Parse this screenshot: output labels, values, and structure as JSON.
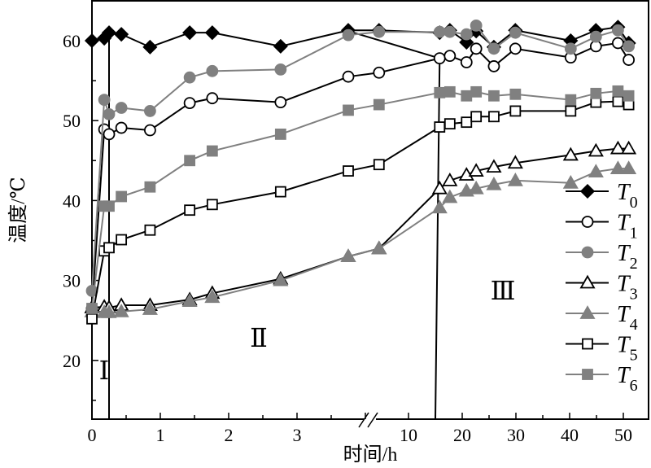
{
  "chart_data": {
    "type": "line",
    "title": "",
    "xlabel": "时间/h",
    "ylabel": "温度/℃",
    "ylim": [
      12.6,
      65
    ],
    "x_axis_break": {
      "left_range": [
        0,
        4.25
      ],
      "right_range": [
        10,
        52
      ]
    },
    "xticks": [
      "0",
      "1",
      "2",
      "3",
      "10",
      "20",
      "30",
      "40",
      "50"
    ],
    "xtick_values": [
      0,
      1,
      2,
      3,
      10,
      20,
      30,
      40,
      50
    ],
    "yticks": [
      "20",
      "30",
      "40",
      "50",
      "60"
    ],
    "ytick_values": [
      20,
      30,
      40,
      50,
      60
    ],
    "legend_position": "right",
    "region_labels": [
      "Ⅰ",
      "Ⅱ",
      "Ⅲ"
    ],
    "x": [
      0,
      0.18,
      0.25,
      0.43,
      0.85,
      1.43,
      1.76,
      2.76,
      3.75,
      4.2,
      15.8,
      17.7,
      20.8,
      22.6,
      25.9,
      29.9,
      40.2,
      44.9,
      49,
      51
    ],
    "series": [
      {
        "name": "T",
        "sub": "0",
        "marker": "diamond",
        "fill": "#000000",
        "line": "#000000",
        "values": [
          60,
          60.3,
          61,
          60.8,
          59.2,
          61,
          61,
          59.3,
          61.3,
          61.3,
          61,
          61.3,
          59.8,
          61.2,
          59.2,
          61.3,
          60,
          61.3,
          61.7,
          59.7
        ]
      },
      {
        "name": "T",
        "sub": "1",
        "marker": "circle",
        "fill": "#ffffff",
        "line": "#000000",
        "values": [
          26.5,
          48.9,
          48.3,
          49.1,
          48.8,
          52.2,
          52.8,
          52.3,
          55.5,
          56,
          57.8,
          58.1,
          57.3,
          59,
          56.8,
          59,
          57.9,
          59.3,
          59.7,
          57.6
        ]
      },
      {
        "name": "T",
        "sub": "2",
        "marker": "circle",
        "fill": "#808080",
        "line": "#808080",
        "values": [
          28.7,
          52.6,
          50.8,
          51.6,
          51.2,
          55.4,
          56.2,
          56.4,
          60.7,
          61.1,
          61.1,
          61.1,
          60.8,
          61.9,
          59,
          61,
          59,
          60.5,
          61.3,
          59.3
        ]
      },
      {
        "name": "T",
        "sub": "3",
        "marker": "triangle",
        "fill": "#ffffff",
        "line": "#000000",
        "values": [
          26.6,
          26.7,
          26.6,
          26.9,
          26.9,
          27.6,
          28.4,
          30.2,
          33,
          34,
          41.5,
          42.5,
          43.2,
          43.7,
          44.2,
          44.7,
          45.7,
          46.2,
          46.5,
          46.5
        ]
      },
      {
        "name": "T",
        "sub": "4",
        "marker": "triangle",
        "fill": "#808080",
        "line": "#808080",
        "values": [
          26.1,
          26,
          26,
          26.1,
          26.4,
          27.4,
          27.9,
          30,
          33,
          34,
          39.1,
          40.4,
          41.2,
          41.5,
          42,
          42.5,
          42.2,
          43.6,
          44,
          44
        ]
      },
      {
        "name": "T",
        "sub": "5",
        "marker": "square",
        "fill": "#ffffff",
        "line": "#000000",
        "values": [
          25.2,
          33.7,
          34.1,
          35.1,
          36.3,
          38.8,
          39.5,
          41.1,
          43.7,
          44.5,
          49.2,
          49.6,
          49.8,
          50.5,
          50.5,
          51.2,
          51.2,
          52.3,
          52.4,
          52
        ]
      },
      {
        "name": "T",
        "sub": "6",
        "marker": "square",
        "fill": "#808080",
        "line": "#808080",
        "values": [
          26.5,
          39.3,
          39.3,
          40.5,
          41.7,
          45,
          46.2,
          48.3,
          51.3,
          52,
          53.5,
          53.6,
          53.1,
          53.6,
          53.1,
          53.3,
          52.6,
          53.4,
          53.7,
          53.1
        ]
      }
    ],
    "phase_boundaries": [
      [
        [
          0.25,
          60.8
        ],
        [
          0.25,
          12.6
        ]
      ],
      [
        [
          3.75,
          61.2
        ],
        [
          15.8,
          57.8
        ],
        [
          15.0,
          12.6
        ]
      ]
    ]
  }
}
